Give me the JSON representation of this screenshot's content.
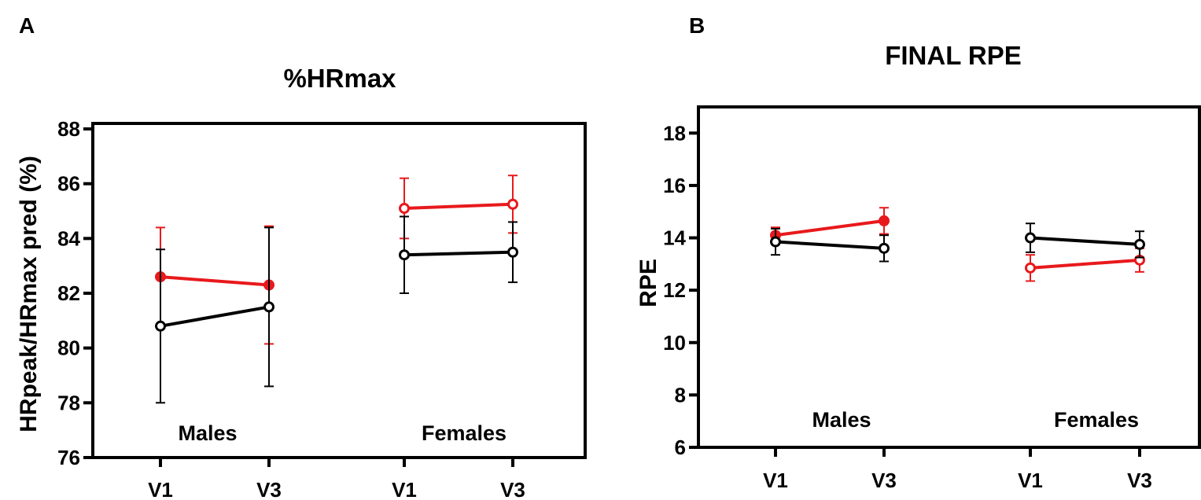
{
  "colors": {
    "red": "#e8191c",
    "black": "#000000"
  },
  "chart_data": [
    {
      "type": "line",
      "panel": "A",
      "title": "%HRmax",
      "xlabel": "",
      "ylabel": "HRpeak/HRmax pred (%)",
      "ylim": [
        76,
        88
      ],
      "yticks": [
        76,
        78,
        80,
        82,
        84,
        86,
        88
      ],
      "categories": [
        "V1",
        "V3",
        "V1",
        "V3"
      ],
      "groups": [
        {
          "label": "Males",
          "indices": [
            0,
            1
          ]
        },
        {
          "label": "Females",
          "indices": [
            2,
            3
          ]
        }
      ],
      "series": [
        {
          "color": "#e8191c",
          "values": [
            82.6,
            82.3,
            85.1,
            85.25
          ],
          "errors": [
            1.8,
            2.15,
            1.1,
            1.05
          ],
          "markers": [
            "filled",
            "filled",
            "open",
            "open"
          ]
        },
        {
          "color": "#000000",
          "values": [
            80.8,
            81.5,
            83.4,
            83.5
          ],
          "errors": [
            2.8,
            2.9,
            1.4,
            1.1
          ],
          "markers": [
            "open",
            "open",
            "open",
            "open"
          ]
        }
      ]
    },
    {
      "type": "line",
      "panel": "B",
      "title": "FINAL RPE",
      "xlabel": "",
      "ylabel": "RPE",
      "ylim": [
        6,
        19
      ],
      "yticks": [
        6,
        8,
        10,
        12,
        14,
        16,
        18
      ],
      "categories": [
        "V1",
        "V3",
        "V1",
        "V3"
      ],
      "groups": [
        {
          "label": "Males",
          "indices": [
            0,
            1
          ]
        },
        {
          "label": "Females",
          "indices": [
            2,
            3
          ]
        }
      ],
      "series": [
        {
          "color": "#e8191c",
          "values": [
            14.1,
            14.65,
            12.85,
            13.15
          ],
          "errors": [
            0.3,
            0.5,
            0.5,
            0.45
          ],
          "markers": [
            "filled",
            "filled",
            "open",
            "open"
          ]
        },
        {
          "color": "#000000",
          "values": [
            13.85,
            13.6,
            14.0,
            13.75
          ],
          "errors": [
            0.5,
            0.5,
            0.55,
            0.5
          ],
          "markers": [
            "open",
            "open",
            "open",
            "open"
          ]
        }
      ]
    }
  ]
}
